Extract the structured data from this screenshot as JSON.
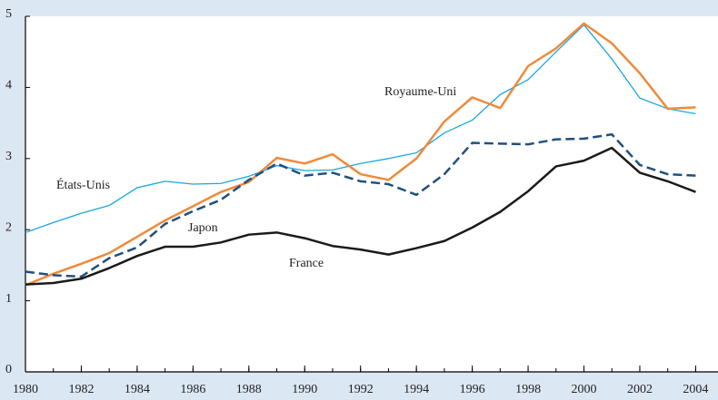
{
  "chart_data": {
    "type": "line",
    "x": [
      1980,
      1981,
      1982,
      1983,
      1984,
      1985,
      1986,
      1987,
      1988,
      1989,
      1990,
      1991,
      1992,
      1993,
      1994,
      1995,
      1996,
      1997,
      1998,
      1999,
      2000,
      2001,
      2002,
      2003,
      2004
    ],
    "series": [
      {
        "name": "États-Unis",
        "color": "#1aa7e0",
        "width": 1.3,
        "dash": "none",
        "values": [
          1.96,
          2.1,
          2.23,
          2.34,
          2.59,
          2.68,
          2.64,
          2.65,
          2.75,
          2.9,
          2.83,
          2.84,
          2.93,
          3.0,
          3.08,
          3.36,
          3.54,
          3.9,
          4.11,
          4.5,
          4.88,
          4.4,
          3.85,
          3.7,
          3.63
        ]
      },
      {
        "name": "Royaume-Uni",
        "color": "#ef8a3a",
        "width": 2.5,
        "dash": "none",
        "values": [
          1.22,
          1.38,
          1.52,
          1.67,
          1.9,
          2.13,
          2.33,
          2.53,
          2.67,
          3.01,
          2.93,
          3.06,
          2.78,
          2.7,
          3.0,
          3.52,
          3.86,
          3.71,
          4.3,
          4.55,
          4.9,
          4.62,
          4.2,
          3.7,
          3.72
        ]
      },
      {
        "name": "Japon",
        "color": "#1f5080",
        "width": 2.5,
        "dash": "10 5",
        "values": [
          1.41,
          1.36,
          1.34,
          1.6,
          1.75,
          2.08,
          2.26,
          2.42,
          2.7,
          2.93,
          2.76,
          2.8,
          2.68,
          2.64,
          2.49,
          2.78,
          3.22,
          3.21,
          3.2,
          3.27,
          3.28,
          3.34,
          2.91,
          2.78,
          2.76
        ]
      },
      {
        "name": "France",
        "color": "#1a1a1a",
        "width": 2.5,
        "dash": "none",
        "values": [
          1.23,
          1.25,
          1.31,
          1.46,
          1.63,
          1.76,
          1.76,
          1.82,
          1.93,
          1.96,
          1.88,
          1.77,
          1.72,
          1.65,
          1.74,
          1.84,
          2.03,
          2.25,
          2.54,
          2.89,
          2.97,
          3.15,
          2.8,
          2.68,
          2.53
        ]
      }
    ],
    "xlim": [
      1980,
      2004.8
    ],
    "xticks": [
      1980,
      1982,
      1984,
      1986,
      1988,
      1990,
      1992,
      1994,
      1996,
      1998,
      2000,
      2002,
      2004
    ],
    "ylim": [
      0,
      5
    ],
    "yticks": [
      0,
      1,
      2,
      3,
      4,
      5
    ]
  }
}
